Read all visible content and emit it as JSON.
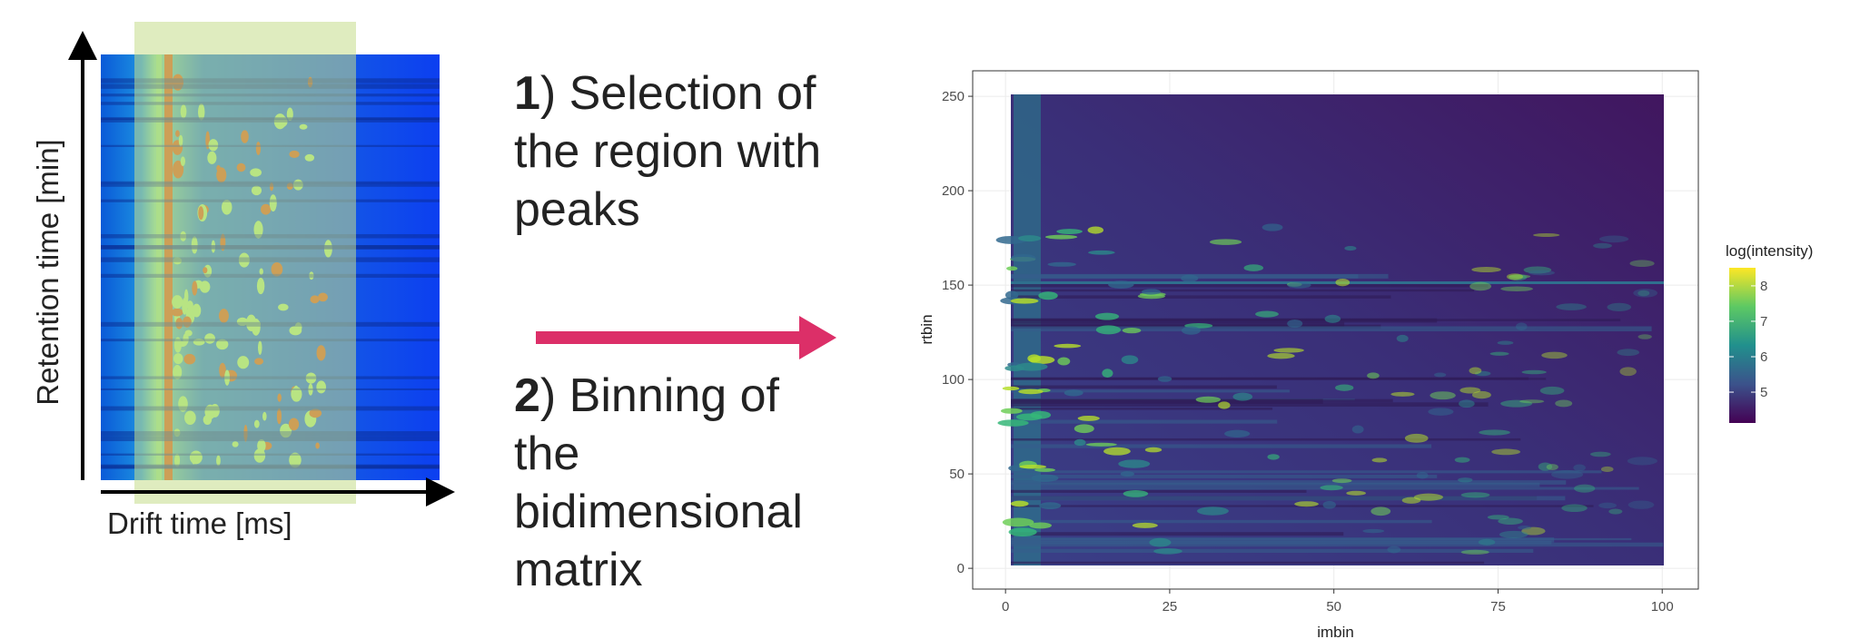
{
  "left_panel": {
    "y_label": "Retention time [min]",
    "x_label": "Drift time [ms]"
  },
  "steps": [
    {
      "number": "1",
      "lines": [
        ") Selection of",
        "the region with",
        "peaks"
      ]
    },
    {
      "number": "2",
      "lines": [
        ") Binning of",
        "the",
        "bidimensional",
        "matrix"
      ]
    }
  ],
  "heatmap": {
    "x_label": "imbin",
    "y_label": "rtbin",
    "xlim": [
      -5,
      105.5
    ],
    "ylim": [
      -11,
      263.5
    ],
    "xticks": [
      0,
      25,
      50,
      75,
      100
    ],
    "yticks": [
      0,
      50,
      100,
      150,
      200,
      250
    ],
    "legend": {
      "title": "log(intensity)",
      "lim": [
        4.13,
        8.51
      ],
      "ticks": [
        5,
        6,
        7,
        8
      ]
    }
  }
}
